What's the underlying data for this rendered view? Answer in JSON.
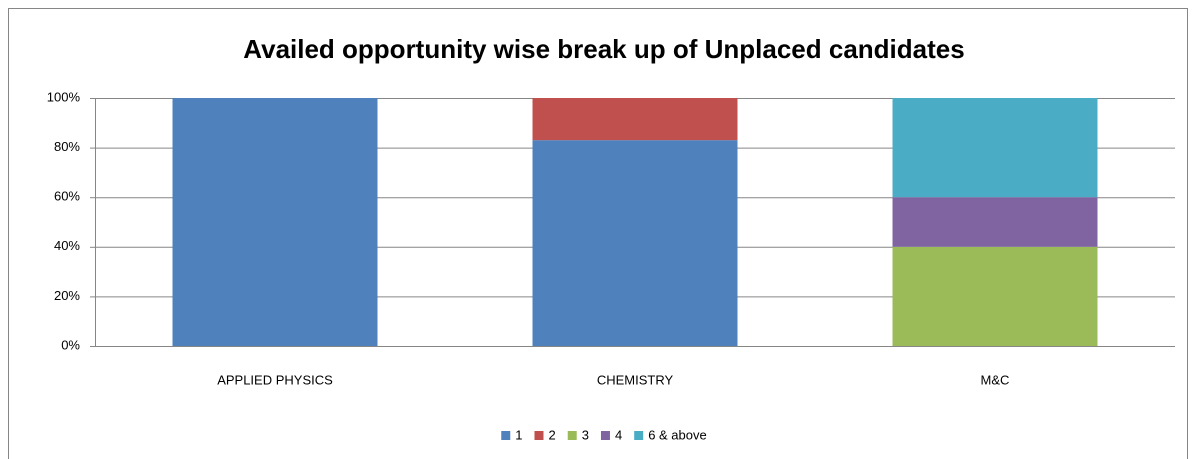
{
  "chart_data": {
    "type": "stacked-bar-percent",
    "title": "Availed opportunity wise break up of Unplaced candidates",
    "categories": [
      "APPLIED PHYSICS",
      "CHEMISTRY",
      "M&C"
    ],
    "series": [
      {
        "name": "1",
        "color": "#4f81bd",
        "values": [
          100,
          83,
          0
        ]
      },
      {
        "name": "2",
        "color": "#c0504d",
        "values": [
          0,
          17,
          0
        ]
      },
      {
        "name": "3",
        "color": "#9bbb59",
        "values": [
          0,
          0,
          40
        ]
      },
      {
        "name": "4",
        "color": "#8064a2",
        "values": [
          0,
          0,
          20
        ]
      },
      {
        "name": "6 & above",
        "color": "#4bacc6",
        "values": [
          0,
          0,
          40
        ]
      }
    ],
    "ylim": [
      0,
      100
    ],
    "yticks": [
      {
        "value": 0,
        "label": "0%"
      },
      {
        "value": 20,
        "label": "20%"
      },
      {
        "value": 40,
        "label": "40%"
      },
      {
        "value": 60,
        "label": "60%"
      },
      {
        "value": 80,
        "label": "80%"
      },
      {
        "value": 100,
        "label": "100%"
      }
    ],
    "grid": true,
    "legend": "bottom"
  }
}
